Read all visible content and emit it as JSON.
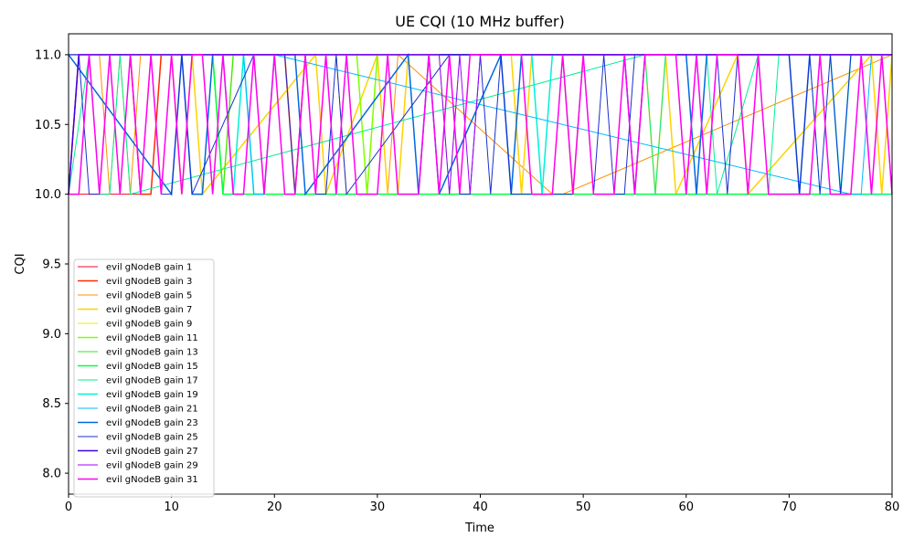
{
  "chart_data": {
    "type": "line",
    "title": "UE CQI (10 MHz buffer)",
    "xlabel": "Time",
    "ylabel": "CQI",
    "xlim": [
      0,
      80
    ],
    "ylim": [
      7.85,
      11.15
    ],
    "xticks": [
      0,
      10,
      20,
      30,
      40,
      50,
      60,
      70,
      80
    ],
    "yticks": [
      8.0,
      8.5,
      9.0,
      9.5,
      10.0,
      10.5,
      11.0
    ],
    "grid": false,
    "legend_position": "lower-left",
    "series": [
      {
        "name": "evil gNodeB gain 1",
        "color": "#ff0029",
        "x": [
          0,
          1,
          7,
          8,
          80
        ],
        "y": [
          10,
          10,
          10,
          11,
          11
        ]
      },
      {
        "name": "evil gNodeB gain 3",
        "color": "#ff2a00",
        "x": [
          0,
          1,
          6,
          7,
          8,
          9,
          20,
          21,
          22,
          23,
          80
        ],
        "y": [
          10,
          11,
          11,
          10,
          10,
          11,
          11,
          11,
          10,
          11,
          11
        ]
      },
      {
        "name": "evil gNodeB gain 5",
        "color": "#ff9000",
        "x": [
          0,
          1,
          2,
          3,
          4,
          5,
          6,
          7,
          8,
          26,
          27,
          29,
          30,
          31,
          32,
          47,
          48,
          80
        ],
        "y": [
          10,
          10,
          11,
          11,
          10,
          11,
          10,
          11,
          11,
          11,
          10,
          10,
          11,
          10,
          11,
          10,
          10,
          11
        ]
      },
      {
        "name": "evil gNodeB gain 7",
        "color": "#ffd200",
        "x": [
          0,
          10,
          11,
          12,
          13,
          24,
          25,
          30,
          31,
          32,
          33,
          43,
          44,
          45,
          55,
          56,
          57,
          58,
          59,
          65,
          66,
          78,
          79,
          80
        ],
        "y": [
          11,
          11,
          10,
          11,
          10,
          11,
          10,
          11,
          10,
          10,
          11,
          11,
          10,
          11,
          11,
          11,
          10,
          11,
          10,
          11,
          10,
          11,
          10,
          11
        ]
      },
      {
        "name": "evil gNodeB gain 9",
        "color": "#e0f200",
        "x": [
          0,
          14,
          15,
          16,
          80
        ],
        "y": [
          11,
          11,
          10,
          11,
          11
        ]
      },
      {
        "name": "evil gNodeB gain 11",
        "color": "#80ff00",
        "x": [
          0,
          14,
          15,
          16,
          28,
          29,
          30,
          48,
          49,
          50,
          80
        ],
        "y": [
          11,
          11,
          10,
          11,
          11,
          10,
          11,
          11,
          10,
          11,
          11
        ]
      },
      {
        "name": "evil gNodeB gain 13",
        "color": "#40e020",
        "x": [
          0,
          14,
          15,
          16,
          36,
          37,
          38,
          80
        ],
        "y": [
          11,
          11,
          10,
          11,
          11,
          10,
          11,
          11
        ]
      },
      {
        "name": "evil gNodeB gain 15",
        "color": "#00ff40",
        "x": [
          0,
          14,
          15,
          80
        ],
        "y": [
          11,
          11,
          10,
          10
        ]
      },
      {
        "name": "evil gNodeB gain 17",
        "color": "#00f090",
        "x": [
          0,
          2,
          3,
          4,
          5,
          6,
          56,
          57,
          58,
          62,
          63,
          67,
          68,
          69,
          72,
          73,
          80
        ],
        "y": [
          10,
          11,
          10,
          10,
          11,
          10,
          11,
          10,
          11,
          11,
          10,
          11,
          10,
          11,
          11,
          10,
          10
        ]
      },
      {
        "name": "evil gNodeB gain 19",
        "color": "#00f0d8",
        "x": [
          0,
          15,
          16,
          17,
          18,
          19,
          20,
          45,
          46,
          47,
          74,
          75,
          76,
          80
        ],
        "y": [
          11,
          11,
          10,
          11,
          10,
          10,
          11,
          11,
          10,
          11,
          11,
          10,
          11,
          11
        ]
      },
      {
        "name": "evil gNodeB gain 21",
        "color": "#00b8ff",
        "x": [
          0,
          11,
          12,
          13,
          14,
          17,
          18,
          19,
          20,
          76,
          77,
          78,
          80
        ],
        "y": [
          11,
          11,
          10,
          10,
          11,
          11,
          10,
          10,
          11,
          10,
          10,
          11,
          11
        ]
      },
      {
        "name": "evil gNodeB gain 23",
        "color": "#0068e0",
        "x": [
          0,
          10,
          11,
          12,
          13,
          14,
          22,
          23,
          33,
          34,
          35,
          36,
          42,
          43,
          44,
          45,
          54,
          55,
          56,
          60,
          61,
          62,
          70,
          71,
          72,
          80
        ],
        "y": [
          11,
          10,
          11,
          10,
          10,
          11,
          11,
          10,
          11,
          10,
          11,
          10,
          11,
          10,
          11,
          11,
          11,
          10,
          11,
          11,
          10,
          11,
          11,
          10,
          11,
          11
        ]
      },
      {
        "name": "evil gNodeB gain 25",
        "color": "#1830d0",
        "x": [
          0,
          1,
          2,
          3,
          4,
          8,
          9,
          10,
          11,
          12,
          18,
          19,
          20,
          21,
          22,
          23,
          24,
          25,
          26,
          27,
          37,
          38,
          39,
          40,
          41,
          42,
          43,
          48,
          49,
          50,
          51,
          52,
          53,
          54,
          55,
          59,
          60,
          61,
          62,
          63,
          64,
          65,
          70,
          71,
          72,
          73,
          74,
          75,
          76,
          79,
          80
        ],
        "y": [
          10,
          11,
          10,
          10,
          11,
          11,
          10,
          10,
          11,
          10,
          11,
          10,
          11,
          11,
          10,
          11,
          10,
          10,
          11,
          10,
          11,
          10,
          10,
          11,
          10,
          11,
          10,
          10,
          10,
          11,
          10,
          11,
          10,
          10,
          11,
          11,
          10,
          11,
          10,
          11,
          10,
          11,
          11,
          10,
          11,
          10,
          11,
          10,
          11,
          11,
          10
        ]
      },
      {
        "name": "evil gNodeB gain 27",
        "color": "#4000e0",
        "x": [
          0,
          1,
          2,
          3,
          4,
          5,
          6,
          7,
          8,
          9,
          10,
          11,
          12,
          13,
          14,
          15,
          16,
          17,
          18,
          19,
          20,
          21,
          22,
          23,
          24,
          25,
          26,
          27,
          28,
          29,
          30,
          31,
          32,
          33,
          34,
          35,
          36,
          37,
          38,
          39,
          40,
          41,
          42,
          43,
          44,
          45,
          46,
          47,
          48,
          49,
          50,
          51,
          52,
          53,
          54,
          55,
          56,
          57,
          58,
          59,
          60,
          61,
          62,
          63,
          64,
          65,
          66,
          67,
          68,
          69,
          70,
          71,
          72,
          73,
          74,
          75,
          76,
          77,
          78,
          79,
          80
        ],
        "y": [
          10,
          11,
          11,
          11,
          11,
          11,
          11,
          11,
          11,
          11,
          11,
          11,
          11,
          11,
          11,
          11,
          11,
          11,
          11,
          11,
          11,
          11,
          11,
          11,
          11,
          11,
          11,
          11,
          11,
          11,
          11,
          11,
          11,
          11,
          11,
          11,
          11,
          11,
          11,
          11,
          11,
          11,
          11,
          11,
          11,
          11,
          11,
          11,
          11,
          11,
          11,
          11,
          11,
          11,
          11,
          11,
          11,
          11,
          11,
          11,
          11,
          11,
          11,
          11,
          11,
          11,
          11,
          11,
          11,
          11,
          11,
          11,
          11,
          11,
          11,
          11,
          11,
          11,
          11,
          11,
          11
        ]
      },
      {
        "name": "evil gNodeB gain 29",
        "color": "#a000ff",
        "x": [
          0,
          36,
          37,
          38,
          39,
          40,
          80
        ],
        "y": [
          11,
          11,
          10,
          11,
          10,
          11,
          11
        ]
      },
      {
        "name": "evil gNodeB gain 31",
        "color": "#ff00f0",
        "x": [
          0,
          1,
          2,
          3,
          4,
          5,
          6,
          7,
          8,
          9,
          10,
          11,
          12,
          13,
          14,
          15,
          16,
          17,
          18,
          19,
          20,
          21,
          22,
          23,
          24,
          25,
          26,
          27,
          28,
          29,
          30,
          31,
          32,
          33,
          34,
          35,
          36,
          37,
          38,
          39,
          40,
          41,
          42,
          43,
          44,
          45,
          46,
          47,
          48,
          49,
          50,
          51,
          52,
          53,
          54,
          55,
          56,
          57,
          58,
          59,
          60,
          61,
          62,
          63,
          64,
          65,
          66,
          67,
          68,
          69,
          70,
          71,
          72,
          73,
          74,
          75,
          76,
          77,
          78,
          79,
          80
        ],
        "y": [
          10,
          10,
          11,
          10,
          11,
          10,
          11,
          10,
          11,
          10,
          11,
          10,
          11,
          11,
          10,
          11,
          10,
          10,
          11,
          10,
          11,
          10,
          10,
          11,
          10,
          11,
          10,
          11,
          10,
          10,
          10,
          11,
          10,
          10,
          10,
          11,
          10,
          11,
          10,
          11,
          11,
          11,
          11,
          11,
          11,
          10,
          10,
          10,
          11,
          10,
          11,
          10,
          10,
          10,
          11,
          10,
          11,
          11,
          11,
          11,
          10,
          11,
          10,
          11,
          11,
          11,
          10,
          11,
          10,
          10,
          10,
          10,
          10,
          11,
          10,
          10,
          10,
          11,
          10,
          11,
          10
        ]
      }
    ]
  }
}
